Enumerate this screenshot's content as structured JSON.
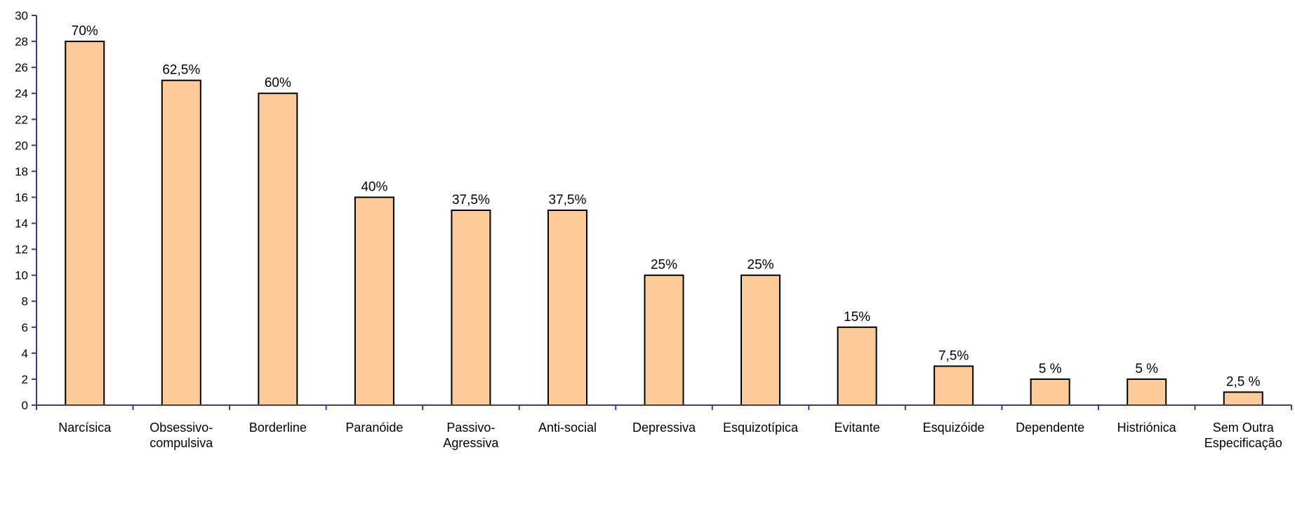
{
  "chart_data": {
    "type": "bar",
    "categories": [
      [
        "Narcísica"
      ],
      [
        "Obsessivo-",
        "compulsiva"
      ],
      [
        "Borderline"
      ],
      [
        "Paranóide"
      ],
      [
        "Passivo-",
        "Agressiva"
      ],
      [
        "Anti-social"
      ],
      [
        "Depressiva"
      ],
      [
        "Esquizotípica"
      ],
      [
        "Evitante"
      ],
      [
        "Esquizóide"
      ],
      [
        "Dependente"
      ],
      [
        "Histriónica"
      ],
      [
        "Sem Outra",
        "Especificação"
      ]
    ],
    "values": [
      28,
      25,
      24,
      16,
      15,
      15,
      10,
      10,
      6,
      3,
      2,
      2,
      1
    ],
    "data_labels": [
      "70%",
      "62,5%",
      "60%",
      "40%",
      "37,5%",
      "37,5%",
      "25%",
      "25%",
      "15%",
      "7,5%",
      "5 %",
      "5 %",
      "2,5 %"
    ],
    "ylim": [
      0,
      30
    ],
    "yticks": [
      0,
      2,
      4,
      6,
      8,
      10,
      12,
      14,
      16,
      18,
      20,
      22,
      24,
      26,
      28,
      30
    ],
    "grid": false,
    "colors": {
      "bar_fill": "#fdca9a",
      "bar_stroke": "#000000",
      "axis": "#3b3b8a"
    }
  }
}
